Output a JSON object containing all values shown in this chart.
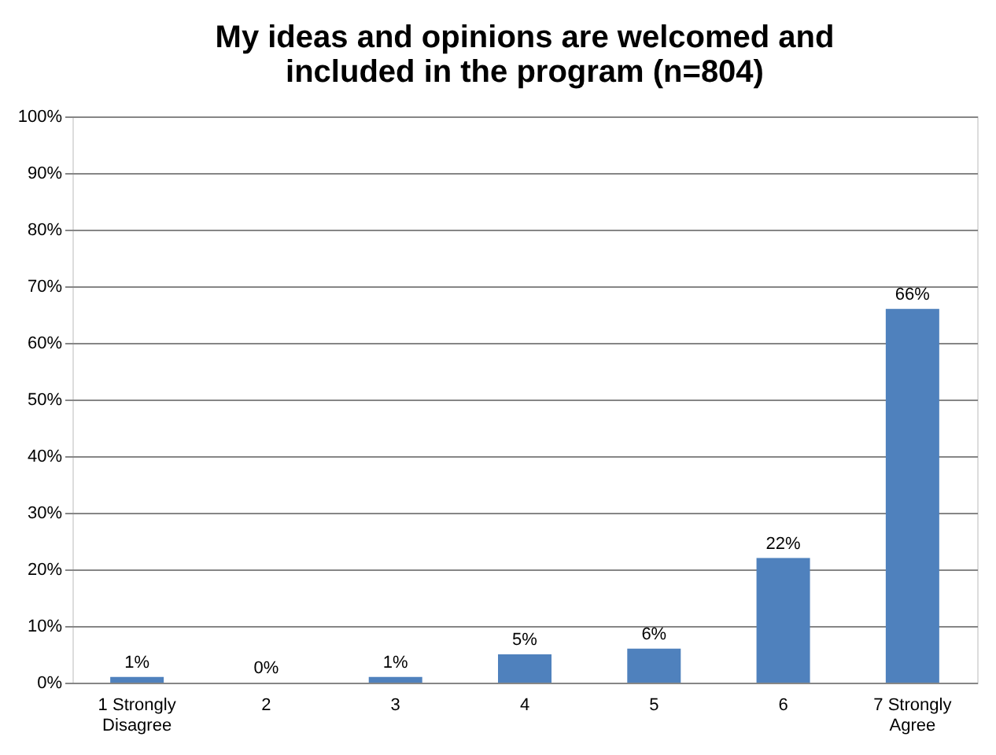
{
  "chart_data": {
    "type": "bar",
    "title": "My ideas and opinions are welcomed and included in the program (n=804)",
    "categories": [
      "1 Strongly Disagree",
      "2",
      "3",
      "4",
      "5",
      "6",
      "7 Strongly Agree"
    ],
    "values": [
      1,
      0,
      1,
      5,
      6,
      22,
      66
    ],
    "value_labels": [
      "1%",
      "0%",
      "1%",
      "5%",
      "6%",
      "22%",
      "66%"
    ],
    "color": "#4f81bd",
    "ylim": [
      0,
      100
    ],
    "yticks": [
      {
        "value": 0,
        "label": "0%"
      },
      {
        "value": 10,
        "label": "10%"
      },
      {
        "value": 20,
        "label": "20%"
      },
      {
        "value": 30,
        "label": "30%"
      },
      {
        "value": 40,
        "label": "40%"
      },
      {
        "value": 50,
        "label": "50%"
      },
      {
        "value": 60,
        "label": "60%"
      },
      {
        "value": 70,
        "label": "70%"
      },
      {
        "value": 80,
        "label": "80%"
      },
      {
        "value": 90,
        "label": "90%"
      },
      {
        "value": 100,
        "label": "100%"
      }
    ],
    "grid": "y"
  }
}
